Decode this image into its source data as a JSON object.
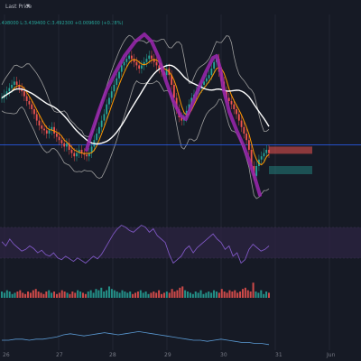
{
  "header": {
    "price_source": "Last Price",
    "dropdown_icon": "caret-down-icon",
    "ohlc_text": ".498000  L:3.439400  C:3.492300  +0.009600 (+0.28%)"
  },
  "colors": {
    "background": "#161a25",
    "candle_up": "#26a69a",
    "candle_down": "#ef5350",
    "ma_fast": "#ff9800",
    "ma_slow": "#ffffff",
    "bollinger": "#9e9e9e",
    "drawing": "#9c27b0",
    "horizontal_line": "#2962ff",
    "rsi_line": "#7e57c2",
    "rsi_band": "#2a2340"
  },
  "x_axis": {
    "ticks": [
      "26",
      "27",
      "28",
      "29",
      "30",
      "31",
      "Jun"
    ]
  },
  "chart_data": [
    {
      "type": "candlestick",
      "title": "",
      "x_ticks": [
        "26",
        "27",
        "28",
        "29",
        "30",
        "31",
        "Jun"
      ],
      "y_range_visual": [
        0,
        100
      ],
      "close_series": [
        62,
        64,
        66,
        68,
        70,
        72,
        70,
        68,
        66,
        63,
        60,
        58,
        55,
        52,
        48,
        45,
        43,
        42,
        40,
        42,
        44,
        40,
        38,
        36,
        34,
        32,
        34,
        30,
        28,
        26,
        28,
        30,
        28,
        27,
        26,
        28,
        32,
        36,
        40,
        44,
        48,
        52,
        58,
        62,
        66,
        70,
        74,
        78,
        82,
        84,
        86,
        88,
        86,
        84,
        82,
        80,
        82,
        84,
        86,
        88,
        86,
        84,
        82,
        80,
        78,
        76,
        80,
        76,
        70,
        62,
        55,
        50,
        48,
        50,
        54,
        58,
        62,
        64,
        66,
        68,
        70,
        72,
        74,
        76,
        80,
        84,
        86,
        78,
        72,
        66,
        62,
        60,
        58,
        55,
        52,
        48,
        44,
        40,
        36,
        30,
        20,
        14,
        20,
        24,
        26,
        28,
        30,
        28
      ],
      "volume": [
        5,
        4,
        6,
        5,
        3,
        4,
        5,
        6,
        4,
        3,
        5,
        4,
        6,
        7,
        5,
        4,
        3,
        5,
        6,
        4,
        5,
        3,
        4,
        6,
        5,
        4,
        3,
        5,
        4,
        6,
        5,
        4,
        3,
        5,
        6,
        4,
        7,
        6,
        8,
        5,
        6,
        9,
        7,
        6,
        5,
        4,
        6,
        5,
        4,
        5,
        3,
        4,
        5,
        6,
        4,
        5,
        3,
        4,
        5,
        4,
        6,
        3,
        4,
        5,
        4,
        7,
        5,
        6,
        8,
        9,
        6,
        5,
        4,
        3,
        5,
        4,
        6,
        3,
        4,
        5,
        4,
        6,
        5,
        4,
        7,
        5,
        4,
        6,
        5,
        6,
        4,
        5,
        7,
        8,
        6,
        5,
        12,
        5,
        4,
        6,
        3,
        5,
        4
      ],
      "overlays": [
        "ma_fast",
        "ma_slow",
        "bollinger_bands"
      ],
      "current_price_line": true
    },
    {
      "type": "line",
      "title": "",
      "panel": "rsi",
      "values": [
        55,
        50,
        58,
        52,
        48,
        44,
        46,
        50,
        47,
        42,
        45,
        40,
        38,
        42,
        36,
        34,
        38,
        35,
        32,
        36,
        33,
        30,
        34,
        38,
        35,
        40,
        48,
        56,
        64,
        70,
        74,
        72,
        68,
        66,
        70,
        74,
        72,
        66,
        70,
        62,
        58,
        54,
        40,
        30,
        34,
        38,
        46,
        50,
        42,
        48,
        52,
        56,
        60,
        64,
        58,
        54,
        46,
        50,
        38,
        42,
        30,
        34,
        46,
        52,
        48,
        44,
        46,
        50
      ]
    },
    {
      "type": "line",
      "title": "",
      "panel": "lower_indicator",
      "values": [
        5,
        5,
        6,
        6,
        5,
        6,
        6,
        7,
        8,
        10,
        11,
        10,
        9,
        10,
        11,
        12,
        11,
        10,
        11,
        12,
        13,
        12,
        11,
        10,
        9,
        8,
        7,
        6,
        5,
        5,
        4,
        5,
        6,
        5,
        4,
        3,
        3,
        2,
        2,
        1
      ]
    }
  ]
}
